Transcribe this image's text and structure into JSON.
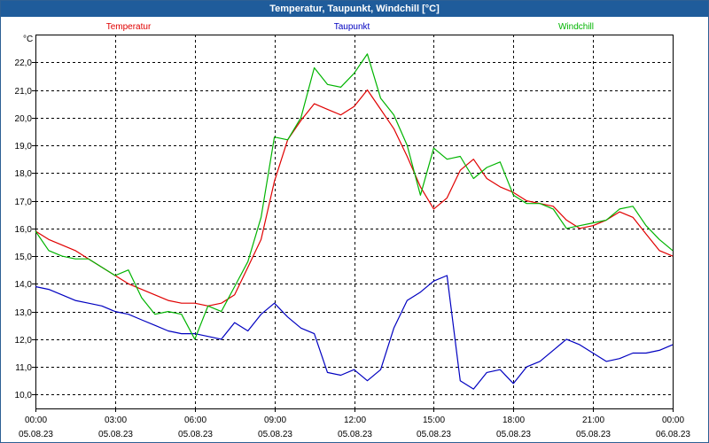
{
  "window": {
    "title": "Temperatur, Taupunkt, Windchill [°C]"
  },
  "colors": {
    "title_bar": "#1f5c9b",
    "temperatur": "#e00000",
    "taupunkt": "#0000c0",
    "windchill": "#00b400",
    "grid": "#000000"
  },
  "chart_data": {
    "type": "line",
    "title": "Temperatur, Taupunkt, Windchill [°C]",
    "ylabel": "°C",
    "xlabel": "",
    "x_unit": "hours since 05.08.23 00:00",
    "ylim": [
      9.5,
      23.0
    ],
    "xlim": [
      0,
      24
    ],
    "y_ticks": [
      10.0,
      11.0,
      12.0,
      13.0,
      14.0,
      15.0,
      16.0,
      17.0,
      18.0,
      19.0,
      20.0,
      21.0,
      22.0
    ],
    "y_tick_labels": [
      "10,0",
      "11,0",
      "12,0",
      "13,0",
      "14,0",
      "15,0",
      "16,0",
      "17,0",
      "18,0",
      "19,0",
      "20,0",
      "21,0",
      "22,0"
    ],
    "x_ticks": [
      0,
      3,
      6,
      9,
      12,
      15,
      18,
      21,
      24
    ],
    "x_tick_labels": [
      {
        "time": "00:00",
        "date": "05.08.23"
      },
      {
        "time": "03:00",
        "date": "05.08.23"
      },
      {
        "time": "06:00",
        "date": "05.08.23"
      },
      {
        "time": "09:00",
        "date": "05.08.23"
      },
      {
        "time": "12:00",
        "date": "05.08.23"
      },
      {
        "time": "15:00",
        "date": "05.08.23"
      },
      {
        "time": "18:00",
        "date": "05.08.23"
      },
      {
        "time": "21:00",
        "date": "05.08.23"
      },
      {
        "time": "00:00",
        "date": "06.08.23"
      }
    ],
    "grid": true,
    "series": [
      {
        "name": "Temperatur",
        "color": "#e00000",
        "x": [
          0,
          0.5,
          1,
          1.5,
          2,
          2.5,
          3,
          3.5,
          4,
          4.5,
          5,
          5.5,
          6,
          6.5,
          7,
          7.5,
          8,
          8.5,
          9,
          9.5,
          10,
          10.5,
          11,
          11.5,
          12,
          12.5,
          13,
          13.5,
          14,
          14.5,
          15,
          15.5,
          16,
          16.5,
          17,
          17.5,
          18,
          18.5,
          19,
          19.5,
          20,
          20.5,
          21,
          21.5,
          22,
          22.5,
          23,
          23.5,
          24
        ],
        "y": [
          15.9,
          15.6,
          15.4,
          15.2,
          14.9,
          14.6,
          14.3,
          14.0,
          13.8,
          13.6,
          13.4,
          13.3,
          13.3,
          13.2,
          13.3,
          13.6,
          14.6,
          15.6,
          17.7,
          19.2,
          19.9,
          20.5,
          20.3,
          20.1,
          20.4,
          21.0,
          20.3,
          19.6,
          18.6,
          17.5,
          16.7,
          17.1,
          18.1,
          18.5,
          17.8,
          17.5,
          17.3,
          17.0,
          16.9,
          16.8,
          16.3,
          16.0,
          16.1,
          16.3,
          16.6,
          16.4,
          15.8,
          15.2,
          15.0
        ]
      },
      {
        "name": "Taupunkt",
        "color": "#0000c0",
        "x": [
          0,
          0.5,
          1,
          1.5,
          2,
          2.5,
          3,
          3.5,
          4,
          4.5,
          5,
          5.5,
          6,
          6.5,
          7,
          7.5,
          8,
          8.5,
          9,
          9.5,
          10,
          10.5,
          11,
          11.5,
          12,
          12.5,
          13,
          13.5,
          14,
          14.5,
          15,
          15.5,
          16,
          16.5,
          17,
          17.5,
          18,
          18.5,
          19,
          19.5,
          20,
          20.5,
          21,
          21.5,
          22,
          22.5,
          23,
          23.5,
          24
        ],
        "y": [
          13.9,
          13.8,
          13.6,
          13.4,
          13.3,
          13.2,
          13.0,
          12.9,
          12.7,
          12.5,
          12.3,
          12.2,
          12.2,
          12.1,
          12.0,
          12.6,
          12.3,
          12.9,
          13.3,
          12.8,
          12.4,
          12.2,
          10.8,
          10.7,
          10.9,
          10.5,
          10.9,
          12.4,
          13.4,
          13.7,
          14.1,
          14.3,
          10.5,
          10.2,
          10.8,
          10.9,
          10.4,
          11.0,
          11.2,
          11.6,
          12.0,
          11.8,
          11.5,
          11.2,
          11.3,
          11.5,
          11.5,
          11.6,
          11.8
        ]
      },
      {
        "name": "Windchill",
        "color": "#00b400",
        "x": [
          0,
          0.5,
          1,
          1.5,
          2,
          2.5,
          3,
          3.5,
          4,
          4.5,
          5,
          5.5,
          6,
          6.5,
          7,
          7.5,
          8,
          8.5,
          9,
          9.5,
          10,
          10.5,
          11,
          11.5,
          12,
          12.5,
          13,
          13.5,
          14,
          14.5,
          15,
          15.5,
          16,
          16.5,
          17,
          17.5,
          18,
          18.5,
          19,
          19.5,
          20,
          20.5,
          21,
          21.5,
          22,
          22.5,
          23,
          23.5,
          24
        ],
        "y": [
          15.9,
          15.2,
          15.0,
          14.9,
          14.9,
          14.6,
          14.3,
          14.5,
          13.5,
          12.9,
          13.0,
          12.9,
          12.0,
          13.2,
          13.0,
          13.9,
          14.8,
          16.4,
          19.3,
          19.2,
          20.0,
          21.8,
          21.2,
          21.1,
          21.6,
          22.3,
          20.7,
          20.1,
          19.0,
          17.2,
          18.9,
          18.5,
          18.6,
          17.8,
          18.2,
          18.4,
          17.2,
          16.9,
          16.9,
          16.7,
          16.0,
          16.1,
          16.2,
          16.3,
          16.7,
          16.8,
          16.1,
          15.6,
          15.2
        ]
      }
    ]
  }
}
